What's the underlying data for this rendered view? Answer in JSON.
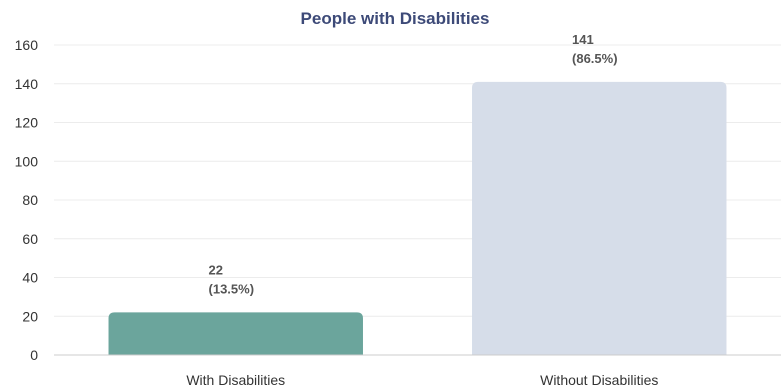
{
  "chart_data": {
    "type": "bar",
    "title": "People with Disabilities",
    "categories": [
      "With Disabilities",
      "Without Disabilities"
    ],
    "values": [
      22,
      141
    ],
    "data_labels": [
      [
        "22",
        "(13.5%)"
      ],
      [
        "141",
        "(86.5%)"
      ]
    ],
    "colors": [
      "#6ba59c",
      "#d6dde9"
    ],
    "ylim": [
      0,
      160
    ],
    "yticks": [
      0,
      20,
      40,
      60,
      80,
      100,
      120,
      140,
      160
    ],
    "grid": true,
    "legend": "none"
  }
}
